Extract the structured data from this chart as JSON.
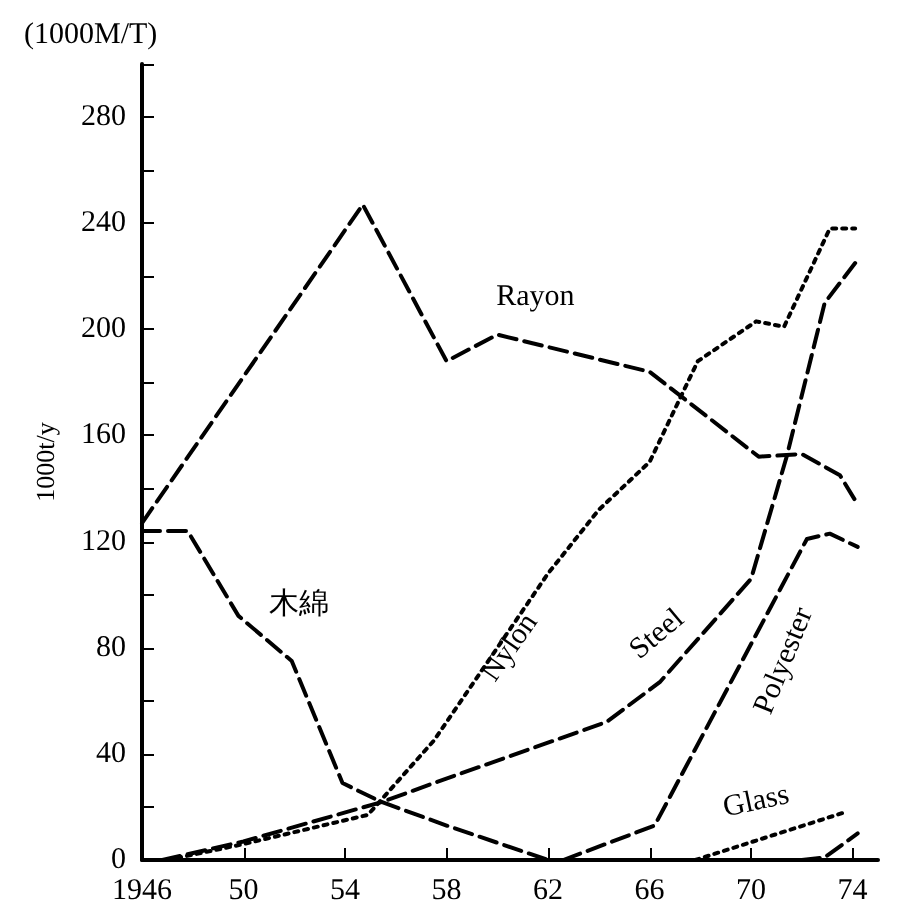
{
  "chart_data": {
    "type": "line",
    "ylabel": "1000t/y",
    "annotations": [
      "(1000M/T)"
    ],
    "xlim": [
      1946,
      1975
    ],
    "xticks": [
      {
        "value": 1946,
        "label": "1946"
      },
      {
        "value": 1950,
        "label": "50"
      },
      {
        "value": 1954,
        "label": "54"
      },
      {
        "value": 1958,
        "label": "58"
      },
      {
        "value": 1962,
        "label": "62"
      },
      {
        "value": 1966,
        "label": "66"
      },
      {
        "value": 1970,
        "label": "70"
      },
      {
        "value": 1974,
        "label": "74"
      }
    ],
    "ylim": [
      0,
      300
    ],
    "yticks": [
      0,
      {
        "value": 20,
        "label": null
      },
      40,
      {
        "value": 60,
        "label": null
      },
      80,
      {
        "value": 100,
        "label": null
      },
      120,
      {
        "value": 140,
        "label": null
      },
      160,
      {
        "value": 180,
        "label": null
      },
      200,
      {
        "value": 220,
        "label": null
      },
      240,
      {
        "value": 260,
        "label": null
      },
      280,
      {
        "value": 300,
        "label": null
      }
    ],
    "grid": false,
    "legend": false,
    "marker": "none",
    "series": [
      {
        "name": "Rayon",
        "color": "#000000",
        "line_style": "dashed",
        "x": [
          1946,
          1954.7,
          1958,
          1960,
          1966,
          1970.3,
          1972,
          1973.5,
          1974.2
        ],
        "values": [
          127,
          247,
          188,
          198,
          184,
          152,
          153,
          145,
          134
        ]
      },
      {
        "name": "木綿",
        "color": "#000000",
        "line_style": "dashed",
        "x": [
          1946,
          1947.8,
          1949.8,
          1951.9,
          1953.9,
          1955.4,
          1958,
          1962
        ],
        "values": [
          124,
          124,
          92,
          75,
          29,
          22,
          13,
          0
        ]
      },
      {
        "name": "Nylon",
        "color": "#000000",
        "line_style": "dotted",
        "x": [
          1947,
          1950,
          1954.9,
          1957.5,
          1960,
          1962,
          1964,
          1966,
          1967.9,
          1970.2,
          1971.3,
          1973.1,
          1974.1
        ],
        "values": [
          0,
          6,
          17,
          45,
          80,
          108,
          132,
          150,
          188,
          203,
          201,
          238,
          238
        ]
      },
      {
        "name": "Steel",
        "color": "#000000",
        "line_style": "dashed",
        "x": [
          1946.8,
          1950,
          1955.5,
          1957.5,
          1964.3,
          1966.4,
          1970,
          1971.4,
          1972.9,
          1974.1
        ],
        "values": [
          0,
          7,
          22,
          29,
          52,
          67,
          106,
          152,
          210,
          225
        ]
      },
      {
        "name": "Polyester",
        "color": "#000000",
        "line_style": "dashed",
        "x": [
          1962.6,
          1966.2,
          1972.2,
          1973.1,
          1974.2
        ],
        "values": [
          0,
          13,
          121,
          123,
          118
        ]
      },
      {
        "name": "Glass",
        "color": "#000000",
        "line_style": "dotted",
        "x": [
          1967.8,
          1973.7
        ],
        "values": [
          0,
          18
        ]
      },
      {
        "color": "#000000",
        "line_style": "dashed",
        "x": [
          1972,
          1972.9,
          1974.2
        ],
        "values": [
          0,
          1,
          10
        ]
      }
    ]
  }
}
